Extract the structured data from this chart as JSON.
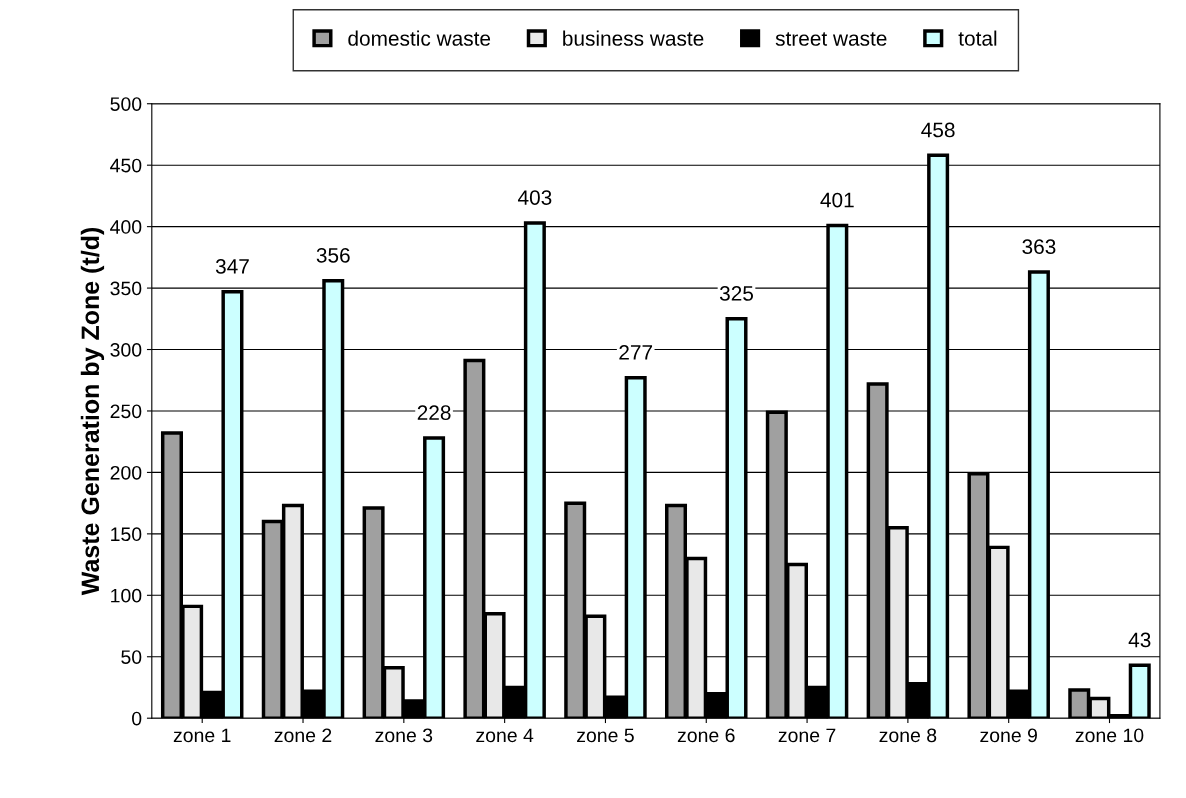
{
  "chart_data": {
    "type": "bar",
    "ylabel": "Waste Generation by Zone (t/d)",
    "categories": [
      "zone 1",
      "zone 2",
      "zone 3",
      "zone 4",
      "zone 5",
      "zone 6",
      "zone 7",
      "zone 8",
      "zone 9",
      "zone 10"
    ],
    "series": [
      {
        "name": "domestic waste",
        "color": "#a0a0a0",
        "values": [
          232,
          160,
          171,
          291,
          175,
          173,
          249,
          272,
          199,
          23
        ]
      },
      {
        "name": "business waste",
        "color": "#e8e8e8",
        "values": [
          91,
          173,
          41,
          85,
          83,
          130,
          125,
          155,
          139,
          16
        ]
      },
      {
        "name": "street waste",
        "color": "#000000",
        "values": [
          21,
          22,
          14,
          25,
          17,
          20,
          25,
          28,
          22,
          2
        ]
      },
      {
        "name": "total",
        "color": "#ccffff",
        "values": [
          347,
          356,
          228,
          403,
          277,
          325,
          401,
          458,
          363,
          43
        ],
        "value_labels": [
          "347",
          "356",
          "228",
          "403",
          "277",
          "325",
          "401",
          "458",
          "363",
          "43"
        ]
      }
    ],
    "ylim": [
      0,
      500
    ],
    "yticks": [
      0,
      50,
      100,
      150,
      200,
      250,
      300,
      350,
      400,
      450,
      500
    ],
    "grid": "y",
    "legend": "top"
  }
}
